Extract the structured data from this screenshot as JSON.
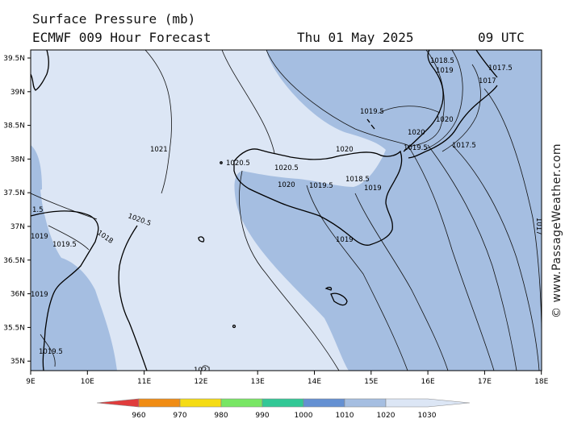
{
  "header": {
    "title": "Surface Pressure (mb)",
    "model_line": "ECMWF 009 Hour Forecast",
    "date": "Thu 01 May 2025",
    "time": "09 UTC"
  },
  "map": {
    "lat_labels": [
      "39.5N",
      "39N",
      "38.5N",
      "38N",
      "37.5N",
      "37N",
      "36.5N",
      "36N",
      "35.5N",
      "35N"
    ],
    "lon_labels": [
      "9E",
      "10E",
      "11E",
      "12E",
      "13E",
      "14E",
      "15E",
      "16E",
      "17E",
      "18E"
    ],
    "isobar_labels": {
      "a": "1018.5",
      "b": "1019",
      "c": "1017.5",
      "d": "1017",
      "e": "1019.5",
      "f": "1020",
      "g": "1021",
      "h": "1020.5",
      "i": "1020.5",
      "j": "1020",
      "k": "1019.5",
      "l": "1020",
      "m": "1018.5",
      "n": "1019",
      "o": "1019.5",
      "p": "1017.5",
      "q": "1017",
      "r": "1020.5",
      "s": "1019",
      "t": "1020",
      "u": "1019.5",
      "v": "1019",
      "w": "1019",
      "x": "1019.5",
      "y": "1021",
      "z": "1.5",
      "aa": "1018"
    },
    "watermark": "© www.PassageWeather.com"
  },
  "legend": {
    "values": [
      "960",
      "970",
      "980",
      "990",
      "1000",
      "1010",
      "1020",
      "1030"
    ],
    "colors": [
      "#e03c3c",
      "#f08c14",
      "#f5dc14",
      "#78e664",
      "#32c896",
      "#6490d2",
      "#a5bee1",
      "#dce6f5"
    ]
  }
}
